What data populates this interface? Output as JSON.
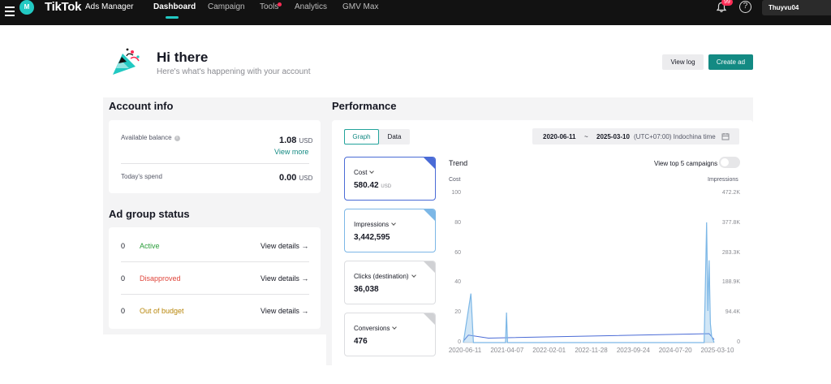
{
  "topbar": {
    "logo_mark": "M",
    "brand": "TikTok",
    "brand_sub": "Ads Manager",
    "nav": [
      "Dashboard",
      "Campaign",
      "Tools",
      "Analytics",
      "GMV Max"
    ],
    "notification_count": "99",
    "help_icon": "?",
    "account_name": "Thuyvu04"
  },
  "header": {
    "title": "Hi there",
    "subtitle": "Here's what's happening with your account",
    "view_log": "View log",
    "create_ad": "Create ad"
  },
  "account_info": {
    "title": "Account info",
    "balance_label": "Available balance",
    "balance_value": "1.08",
    "currency": "USD",
    "view_more": "View more",
    "spend_label": "Today's spend",
    "spend_value": "0.00"
  },
  "ad_group_status": {
    "title": "Ad group status",
    "rows": [
      {
        "count": "0",
        "label": "Active",
        "color": "#2a9d3a",
        "link": "View details →"
      },
      {
        "count": "0",
        "label": "Disapproved",
        "color": "#e0453b",
        "link": "View details →"
      },
      {
        "count": "0",
        "label": "Out of budget",
        "color": "#b8860b",
        "link": "View details →"
      }
    ]
  },
  "performance": {
    "title": "Performance",
    "tabs": [
      "Graph",
      "Data"
    ],
    "date_start": "2020-06-11",
    "date_sep": "~",
    "date_end": "2025-03-10",
    "timezone": "(UTC+07:00) Indochina time",
    "metrics": [
      {
        "name": "Cost",
        "value": "580.42",
        "unit": "USD"
      },
      {
        "name": "Impressions",
        "value": "3,442,595",
        "unit": ""
      },
      {
        "name": "Clicks (destination)",
        "value": "36,038",
        "unit": ""
      },
      {
        "name": "Conversions",
        "value": "476",
        "unit": ""
      }
    ],
    "trend_title": "Trend",
    "top5_label": "View top 5 campaigns",
    "top5_enabled": false
  },
  "chart_data": {
    "type": "line",
    "title": "Trend",
    "ylabel": "Cost",
    "y2label": "Impressions",
    "ylim": [
      0,
      100
    ],
    "y2lim": [
      0,
      472200
    ],
    "yticks": [
      "100",
      "80",
      "60",
      "40",
      "20",
      "0"
    ],
    "y2ticks": [
      "472.2K",
      "377.8K",
      "283.3K",
      "188.9K",
      "94.4K",
      "0"
    ],
    "x_ticks": [
      "2020-06-11",
      "2021-04-07",
      "2022-02-01",
      "2022-11-28",
      "2023-09-24",
      "2024-07-20",
      "2025-03-10"
    ],
    "series": [
      {
        "name": "Cost",
        "color": "#4a6bd6",
        "values": [
          [
            0,
            1
          ],
          [
            0.02,
            5
          ],
          [
            0.1,
            3
          ],
          [
            0.98,
            6
          ],
          [
            1.0,
            2
          ]
        ]
      },
      {
        "name": "Impressions",
        "color": "#7cb7e6",
        "values": [
          [
            0,
            0
          ],
          [
            0.03,
            155000
          ],
          [
            0.04,
            0
          ],
          [
            0.168,
            0
          ],
          [
            0.172,
            95000
          ],
          [
            0.176,
            0
          ],
          [
            0.96,
            0
          ],
          [
            0.965,
            180000
          ],
          [
            0.97,
            380000
          ],
          [
            0.975,
            100000
          ],
          [
            0.98,
            260000
          ],
          [
            0.985,
            60000
          ],
          [
            0.99,
            20000
          ],
          [
            1.0,
            0
          ]
        ]
      }
    ]
  }
}
